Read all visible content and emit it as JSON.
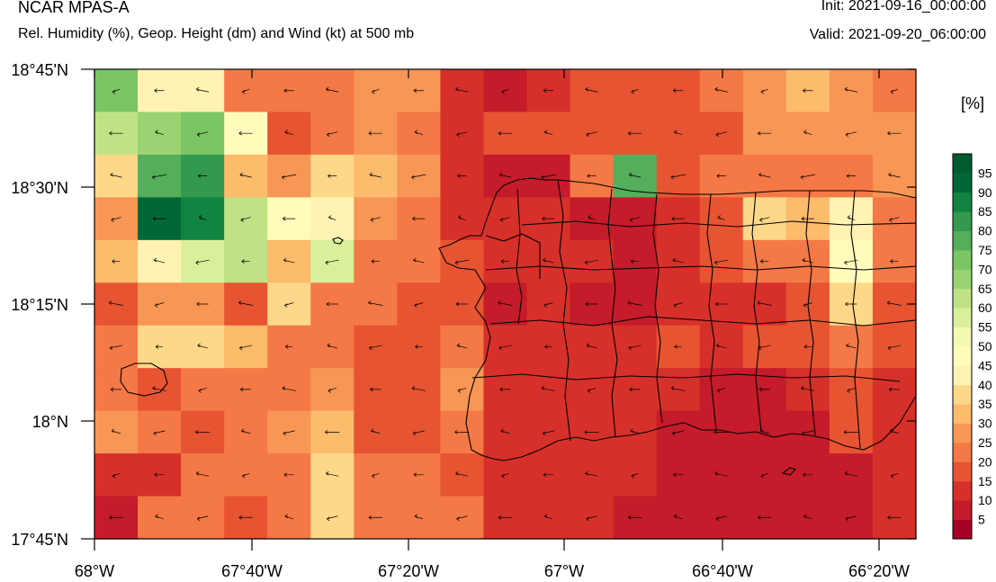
{
  "header": {
    "model": "NCAR MPAS-A",
    "description": "Rel. Humidity (%), Geop. Height (dm) and Wind (kt) at 500 mb",
    "init": "Init: 2021-09-16_00:00:00",
    "valid": "Valid: 2021-09-20_06:00:00"
  },
  "axes": {
    "lat_labels": [
      "18°45'N",
      "18°30'N",
      "18°15'N",
      "18°N",
      "17°45'N"
    ],
    "lon_labels": [
      "68°W",
      "67°40'W",
      "67°20'W",
      "67°W",
      "66°40'W",
      "66°20'W"
    ]
  },
  "colorbar": {
    "units": "[%]",
    "labels": [
      "5",
      "10",
      "15",
      "20",
      "25",
      "30",
      "35",
      "40",
      "45",
      "50",
      "55",
      "60",
      "65",
      "70",
      "75",
      "80",
      "85",
      "90",
      "95"
    ],
    "colors": [
      "#a50026",
      "#c51b2a",
      "#d7302a",
      "#e75432",
      "#f47946",
      "#f89655",
      "#fdbb6c",
      "#fed889",
      "#fff2b3",
      "#fffcbb",
      "#f4f9b1",
      "#d9f09a",
      "#bfe384",
      "#99d372",
      "#7bc565",
      "#55ae5b",
      "#33994e",
      "#128442",
      "#006837",
      "#005c30"
    ]
  },
  "chart_data": {
    "type": "heatmap",
    "field": "Relative humidity (%) at 500 mb",
    "lon_range": [
      -68.0,
      -66.25
    ],
    "lat_range": [
      17.75,
      18.75
    ],
    "rows": [
      [
        70,
        40,
        40,
        20,
        20,
        20,
        25,
        25,
        10,
        5,
        10,
        15,
        15,
        15,
        20,
        25,
        30,
        25,
        20
      ],
      [
        60,
        65,
        70,
        45,
        15,
        20,
        25,
        20,
        10,
        15,
        15,
        15,
        15,
        15,
        15,
        25,
        25,
        25,
        25
      ],
      [
        35,
        75,
        80,
        30,
        25,
        35,
        30,
        25,
        10,
        5,
        5,
        20,
        75,
        15,
        20,
        20,
        20,
        20,
        25
      ],
      [
        25,
        90,
        85,
        60,
        45,
        40,
        25,
        20,
        10,
        10,
        10,
        5,
        5,
        10,
        15,
        35,
        30,
        40,
        20
      ],
      [
        30,
        40,
        55,
        60,
        30,
        55,
        20,
        20,
        15,
        10,
        10,
        10,
        5,
        10,
        15,
        20,
        20,
        45,
        20
      ],
      [
        15,
        25,
        25,
        15,
        35,
        20,
        20,
        15,
        15,
        5,
        10,
        5,
        5,
        10,
        10,
        10,
        15,
        35,
        15
      ],
      [
        20,
        35,
        35,
        30,
        20,
        20,
        15,
        15,
        20,
        10,
        10,
        10,
        10,
        15,
        10,
        15,
        15,
        20,
        15
      ],
      [
        20,
        15,
        20,
        20,
        20,
        25,
        15,
        15,
        25,
        10,
        10,
        10,
        10,
        10,
        5,
        5,
        10,
        15,
        10
      ],
      [
        25,
        20,
        15,
        20,
        25,
        30,
        15,
        15,
        20,
        10,
        10,
        10,
        10,
        5,
        5,
        5,
        5,
        15,
        10
      ],
      [
        10,
        10,
        20,
        20,
        20,
        35,
        20,
        20,
        15,
        10,
        10,
        10,
        10,
        5,
        5,
        5,
        5,
        5,
        10
      ],
      [
        5,
        20,
        20,
        15,
        20,
        35,
        20,
        20,
        20,
        10,
        10,
        10,
        5,
        5,
        5,
        5,
        5,
        5,
        10
      ]
    ],
    "colorbar_levels": [
      5,
      10,
      15,
      20,
      25,
      30,
      35,
      40,
      45,
      50,
      55,
      60,
      65,
      70,
      75,
      80,
      85,
      90,
      95
    ],
    "wind": "easterly wind barbs/arrows pointing west across the domain",
    "legend_position": "right"
  }
}
